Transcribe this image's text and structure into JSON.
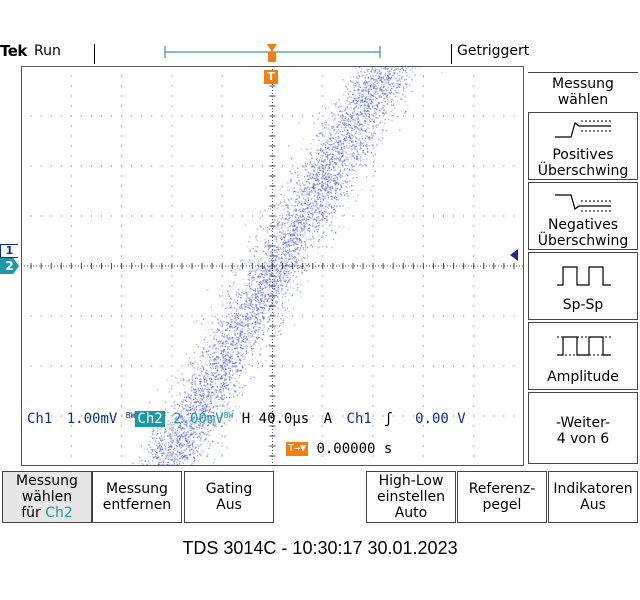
{
  "header": {
    "brand": "Tek",
    "run_state": "Run",
    "trigger_status": "Getriggert"
  },
  "markers": {
    "trigger_top": "T",
    "ch1": "1",
    "ch2": "2"
  },
  "readout": {
    "ch1_label": "Ch1",
    "ch1_scale": "1.00mV",
    "bw1": "BW",
    "ch2_label": "Ch2",
    "ch2_scale": "2.00mV",
    "bw2": "BW",
    "timebase": "H 40.0µs",
    "trigger_mode": "A",
    "trigger_source": "Ch1",
    "trigger_slope": "ʃ",
    "trigger_level": "0.00 V",
    "trigger_pos_icon": "T→▼",
    "trigger_position": "0.00000 s"
  },
  "side_menu": {
    "title_line1": "Messung",
    "title_line2": "wählen",
    "items": [
      {
        "line1": "Positives",
        "line2": "Überschwing"
      },
      {
        "line1": "Negatives",
        "line2": "Überschwing"
      },
      {
        "line1": "Sp-Sp",
        "line2": ""
      },
      {
        "line1": "Amplitude",
        "line2": ""
      },
      {
        "line1": "-Weiter-",
        "line2": "4 von 6"
      }
    ]
  },
  "bottom_menu": [
    {
      "line1": "Messung",
      "line2": "wählen",
      "line3": "für",
      "line3b": "Ch2"
    },
    {
      "line1": "Messung",
      "line2": "entfernen",
      "line3": ""
    },
    {
      "line1": "Gating",
      "line2": "Aus",
      "line3": ""
    },
    {
      "line1": "High-Low",
      "line2": "einstellen",
      "line3": "Auto"
    },
    {
      "line1": "Referenz-",
      "line2": "pegel",
      "line3": ""
    },
    {
      "line1": "Indikatoren",
      "line2": "Aus",
      "line3": ""
    }
  ],
  "footer": {
    "caption": "TDS 3014C - 10:30:17   30.01.2023"
  },
  "colors": {
    "trace": "#5060e8",
    "ch2": "#1b9aa6",
    "ch1": "#0b2f8f",
    "trigger": "#f07f13"
  }
}
